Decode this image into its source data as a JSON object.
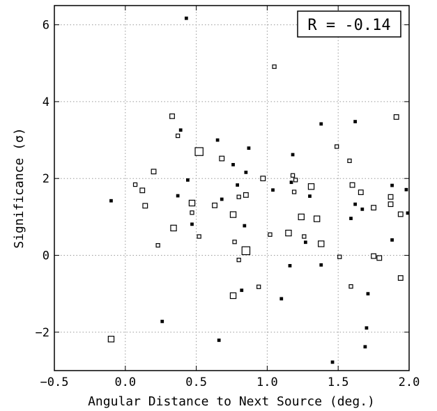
{
  "chart_data": {
    "type": "scatter",
    "title": "",
    "xlabel": "Angular Distance to Next Source (deg.)",
    "ylabel": "Significance (σ)",
    "xlim": [
      -0.5,
      2.0
    ],
    "ylim": [
      -3.0,
      6.5
    ],
    "xticks": [
      -0.5,
      0.0,
      0.5,
      1.0,
      1.5,
      2.0
    ],
    "xtick_labels": [
      "−0.5",
      "0.0",
      "0.5",
      "1.0",
      "1.5",
      "2.0"
    ],
    "yticks": [
      -2,
      0,
      2,
      4,
      6
    ],
    "ytick_labels": [
      "−2",
      "0",
      "2",
      "4",
      "6"
    ],
    "grid": true,
    "grid_style": "dotted",
    "marker": "hollow-square",
    "marker_color": "#000000",
    "annotation": "R = -0.14",
    "annotation_placement": "top-right",
    "points": [
      {
        "x": 0.43,
        "y": 6.17,
        "size": 1
      },
      {
        "x": 1.05,
        "y": 4.91,
        "size": 2
      },
      {
        "x": 0.33,
        "y": 3.62,
        "size": 3
      },
      {
        "x": 0.39,
        "y": 3.26,
        "size": 1
      },
      {
        "x": 0.37,
        "y": 3.11,
        "size": 2
      },
      {
        "x": 0.52,
        "y": 2.7,
        "size": 6
      },
      {
        "x": 0.65,
        "y": 3.0,
        "size": 1
      },
      {
        "x": 0.68,
        "y": 2.52,
        "size": 3
      },
      {
        "x": 0.87,
        "y": 2.79,
        "size": 1
      },
      {
        "x": 0.76,
        "y": 2.36,
        "size": 1
      },
      {
        "x": 1.38,
        "y": 3.42,
        "size": 1
      },
      {
        "x": 1.62,
        "y": 3.48,
        "size": 1
      },
      {
        "x": 1.91,
        "y": 3.6,
        "size": 3
      },
      {
        "x": 1.49,
        "y": 2.83,
        "size": 2
      },
      {
        "x": 1.18,
        "y": 2.62,
        "size": 1
      },
      {
        "x": 1.58,
        "y": 2.46,
        "size": 2
      },
      {
        "x": 0.2,
        "y": 2.18,
        "size": 3
      },
      {
        "x": 0.07,
        "y": 1.84,
        "size": 2
      },
      {
        "x": 0.12,
        "y": 1.69,
        "size": 3
      },
      {
        "x": 0.44,
        "y": 1.96,
        "size": 1
      },
      {
        "x": 0.85,
        "y": 2.16,
        "size": 1
      },
      {
        "x": 0.97,
        "y": 2.0,
        "size": 3
      },
      {
        "x": 1.18,
        "y": 2.08,
        "size": 2
      },
      {
        "x": 1.2,
        "y": 1.96,
        "size": 2
      },
      {
        "x": 1.17,
        "y": 1.9,
        "size": 1
      },
      {
        "x": 1.31,
        "y": 1.79,
        "size": 4
      },
      {
        "x": 1.6,
        "y": 1.83,
        "size": 3
      },
      {
        "x": 1.66,
        "y": 1.64,
        "size": 3
      },
      {
        "x": 1.88,
        "y": 1.82,
        "size": 1
      },
      {
        "x": 1.98,
        "y": 1.71,
        "size": 1
      },
      {
        "x": -0.1,
        "y": 1.42,
        "size": 1
      },
      {
        "x": 0.14,
        "y": 1.29,
        "size": 3
      },
      {
        "x": 0.37,
        "y": 1.55,
        "size": 1
      },
      {
        "x": 0.47,
        "y": 1.36,
        "size": 4
      },
      {
        "x": 0.47,
        "y": 1.11,
        "size": 2
      },
      {
        "x": 0.63,
        "y": 1.3,
        "size": 3
      },
      {
        "x": 0.68,
        "y": 1.46,
        "size": 1
      },
      {
        "x": 0.79,
        "y": 1.83,
        "size": 1
      },
      {
        "x": 0.8,
        "y": 1.52,
        "size": 2
      },
      {
        "x": 0.85,
        "y": 1.57,
        "size": 3
      },
      {
        "x": 1.04,
        "y": 1.7,
        "size": 1
      },
      {
        "x": 1.19,
        "y": 1.65,
        "size": 2
      },
      {
        "x": 1.3,
        "y": 1.54,
        "size": 1
      },
      {
        "x": 1.62,
        "y": 1.33,
        "size": 1
      },
      {
        "x": 1.67,
        "y": 1.2,
        "size": 1
      },
      {
        "x": 1.75,
        "y": 1.24,
        "size": 3
      },
      {
        "x": 1.87,
        "y": 1.52,
        "size": 3
      },
      {
        "x": 1.87,
        "y": 1.33,
        "size": 3
      },
      {
        "x": 1.94,
        "y": 1.07,
        "size": 3
      },
      {
        "x": 1.99,
        "y": 1.1,
        "size": 1
      },
      {
        "x": 0.34,
        "y": 0.71,
        "size": 4
      },
      {
        "x": 0.47,
        "y": 0.81,
        "size": 1
      },
      {
        "x": 0.52,
        "y": 0.49,
        "size": 2
      },
      {
        "x": 0.76,
        "y": 1.06,
        "size": 4
      },
      {
        "x": 0.84,
        "y": 0.77,
        "size": 1
      },
      {
        "x": 1.02,
        "y": 0.54,
        "size": 2
      },
      {
        "x": 1.15,
        "y": 0.58,
        "size": 4
      },
      {
        "x": 1.24,
        "y": 1.0,
        "size": 4
      },
      {
        "x": 1.26,
        "y": 0.49,
        "size": 2
      },
      {
        "x": 1.27,
        "y": 0.34,
        "size": 1
      },
      {
        "x": 1.35,
        "y": 0.95,
        "size": 4
      },
      {
        "x": 1.38,
        "y": 0.3,
        "size": 4
      },
      {
        "x": 1.59,
        "y": 0.96,
        "size": 1
      },
      {
        "x": 1.88,
        "y": 0.4,
        "size": 1
      },
      {
        "x": 0.23,
        "y": 0.26,
        "size": 2
      },
      {
        "x": 0.77,
        "y": 0.35,
        "size": 2
      },
      {
        "x": 0.85,
        "y": 0.12,
        "size": 6
      },
      {
        "x": 0.8,
        "y": -0.12,
        "size": 2
      },
      {
        "x": 1.16,
        "y": -0.27,
        "size": 1
      },
      {
        "x": 1.38,
        "y": -0.25,
        "size": 1
      },
      {
        "x": 1.51,
        "y": -0.04,
        "size": 2
      },
      {
        "x": 1.75,
        "y": -0.02,
        "size": 3
      },
      {
        "x": 1.79,
        "y": -0.07,
        "size": 3
      },
      {
        "x": 1.94,
        "y": -0.59,
        "size": 3
      },
      {
        "x": 0.94,
        "y": -0.82,
        "size": 2
      },
      {
        "x": 1.59,
        "y": -0.81,
        "size": 2
      },
      {
        "x": 0.76,
        "y": -1.05,
        "size": 4
      },
      {
        "x": 0.82,
        "y": -0.91,
        "size": 1
      },
      {
        "x": 1.1,
        "y": -1.13,
        "size": 1
      },
      {
        "x": 1.71,
        "y": -1.0,
        "size": 1
      },
      {
        "x": 0.26,
        "y": -1.72,
        "size": 1
      },
      {
        "x": 1.7,
        "y": -1.89,
        "size": 1
      },
      {
        "x": -0.1,
        "y": -2.18,
        "size": 4
      },
      {
        "x": 0.66,
        "y": -2.21,
        "size": 1
      },
      {
        "x": 1.69,
        "y": -2.38,
        "size": 1
      },
      {
        "x": 1.46,
        "y": -2.78,
        "size": 1
      }
    ]
  }
}
